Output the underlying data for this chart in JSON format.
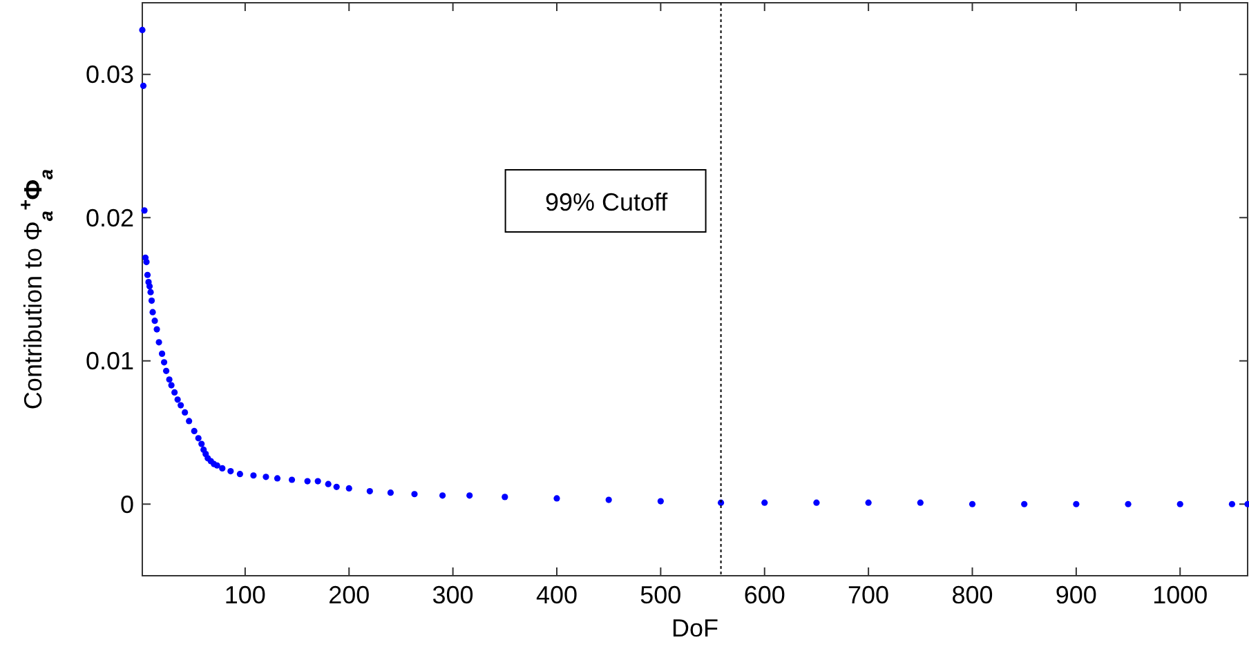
{
  "chart_data": {
    "type": "scatter",
    "xlabel": "DoF",
    "ylabel": "Contribution to Φ$_{a}$$^{+}$Φ$_{a}$",
    "xlim": [
      1,
      1065
    ],
    "ylim": [
      -0.005,
      0.035
    ],
    "xticks": [
      100,
      200,
      300,
      400,
      500,
      600,
      700,
      800,
      900,
      1000
    ],
    "yticks": [
      0,
      0.01,
      0.02,
      0.03
    ],
    "marker": "circle",
    "ref_lines": [
      {
        "axis": "x",
        "value": 558,
        "label": "99% Cutoff",
        "color": "#000000",
        "line_style": "dotted"
      }
    ],
    "series": [
      {
        "color": "#0000ff",
        "x": [
          1,
          2,
          3,
          4,
          5,
          6,
          7,
          8,
          9,
          10,
          11,
          13,
          15,
          17,
          20,
          22,
          24,
          27,
          29,
          32,
          35,
          38,
          42,
          46,
          51,
          55,
          58,
          60,
          62,
          64,
          67,
          70,
          73,
          78,
          86,
          95,
          108,
          120,
          131,
          145,
          160,
          170,
          180,
          188,
          200,
          220,
          240,
          263,
          290,
          316,
          350,
          400,
          450,
          500,
          558,
          600,
          650,
          700,
          750,
          800,
          850,
          900,
          950,
          1000,
          1050,
          1065
        ],
        "values": [
          0.0331,
          0.0292,
          0.0205,
          0.0172,
          0.0169,
          0.016,
          0.0155,
          0.0152,
          0.0148,
          0.0142,
          0.0134,
          0.0128,
          0.0122,
          0.0113,
          0.0105,
          0.0099,
          0.0093,
          0.0087,
          0.0083,
          0.0078,
          0.0073,
          0.0069,
          0.0064,
          0.0058,
          0.0051,
          0.0046,
          0.0042,
          0.0038,
          0.0035,
          0.0032,
          0.003,
          0.0028,
          0.0027,
          0.0025,
          0.0023,
          0.0021,
          0.002,
          0.0019,
          0.0018,
          0.0017,
          0.0016,
          0.0016,
          0.0014,
          0.0012,
          0.0011,
          0.0009,
          0.0008,
          0.0007,
          0.0006,
          0.0006,
          0.0005,
          0.0004,
          0.0003,
          0.0002,
          0.0001,
          0.0001,
          0.0001,
          0.0001,
          0.0001,
          0,
          0,
          0,
          0,
          0,
          0,
          0
        ]
      }
    ]
  }
}
